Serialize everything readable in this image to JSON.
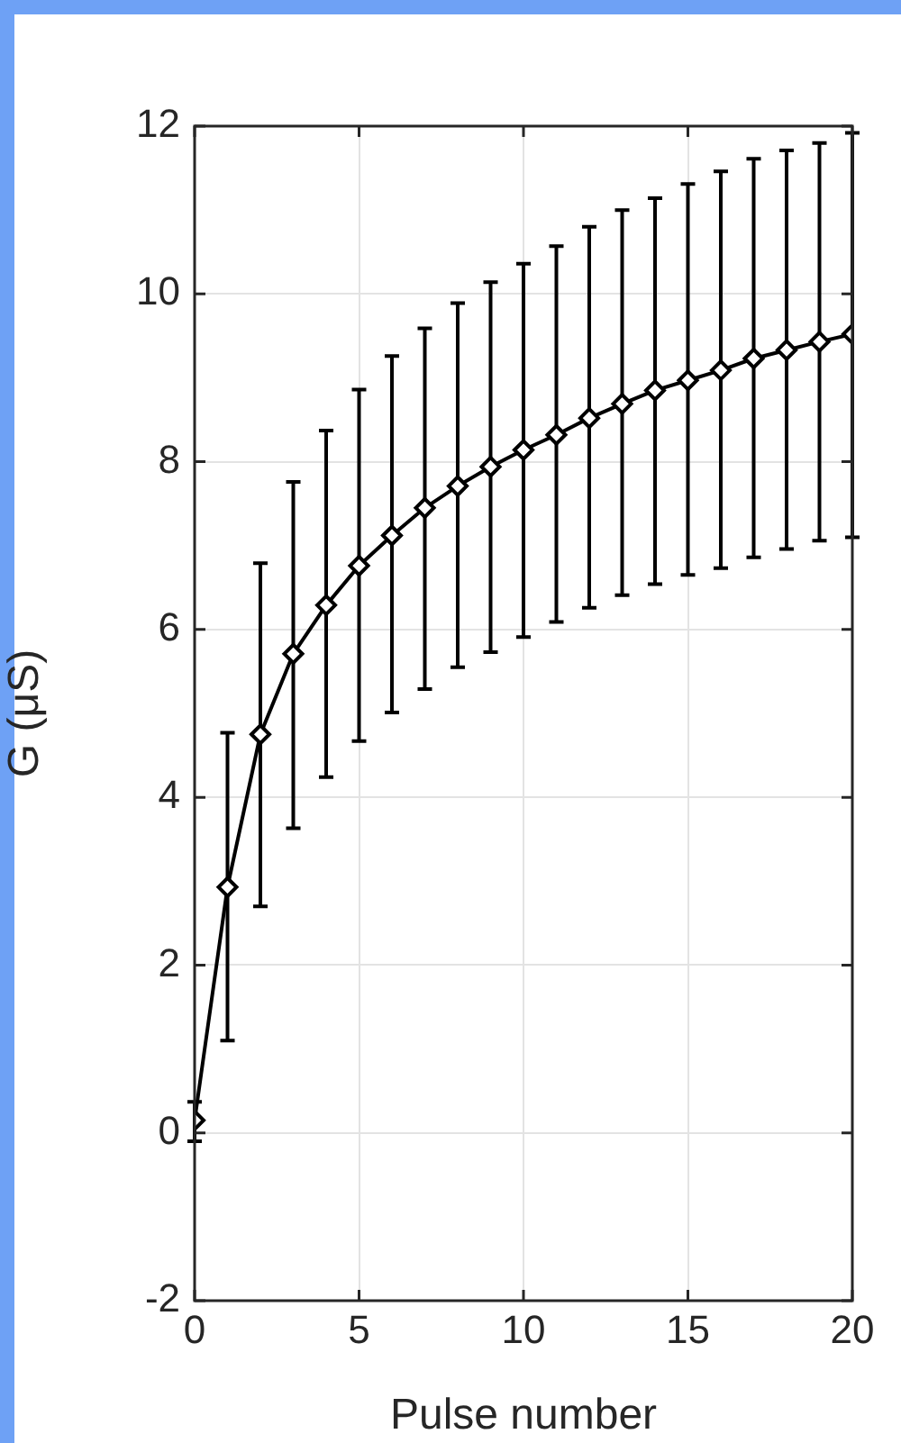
{
  "chart_data": {
    "type": "line",
    "xlabel": "Pulse number",
    "ylabel": "G (μS)",
    "x": [
      0,
      1,
      2,
      3,
      4,
      5,
      6,
      7,
      8,
      9,
      10,
      11,
      12,
      13,
      14,
      15,
      16,
      17,
      18,
      19,
      20
    ],
    "series": [
      {
        "color": "#000000",
        "values": [
          0.15,
          2.93,
          4.75,
          5.71,
          6.29,
          6.76,
          7.12,
          7.45,
          7.71,
          7.94,
          8.14,
          8.32,
          8.52,
          8.69,
          8.85,
          8.97,
          9.09,
          9.23,
          9.33,
          9.43,
          9.52
        ],
        "errors": [
          [
            -0.1,
            0.37
          ],
          [
            1.1,
            4.77
          ],
          [
            2.7,
            6.79
          ],
          [
            3.63,
            7.76
          ],
          [
            4.24,
            8.37
          ],
          [
            4.67,
            8.86
          ],
          [
            5.01,
            9.26
          ],
          [
            5.29,
            9.59
          ],
          [
            5.55,
            9.89
          ],
          [
            5.73,
            10.14
          ],
          [
            5.91,
            10.36
          ],
          [
            6.09,
            10.57
          ],
          [
            6.26,
            10.8
          ],
          [
            6.41,
            11.0
          ],
          [
            6.54,
            11.14
          ],
          [
            6.65,
            11.31
          ],
          [
            6.73,
            11.46
          ],
          [
            6.86,
            11.61
          ],
          [
            6.96,
            11.71
          ],
          [
            7.06,
            11.8
          ],
          [
            7.1,
            11.92
          ]
        ]
      }
    ],
    "xlim": [
      0,
      20
    ],
    "xticks": [
      0,
      5,
      10,
      15,
      20
    ],
    "ylim": [
      -2,
      12
    ],
    "yticks": [
      -2,
      0,
      2,
      4,
      6,
      8,
      10,
      12
    ],
    "grid": true,
    "marker": "diamond",
    "line_style": "solid"
  }
}
